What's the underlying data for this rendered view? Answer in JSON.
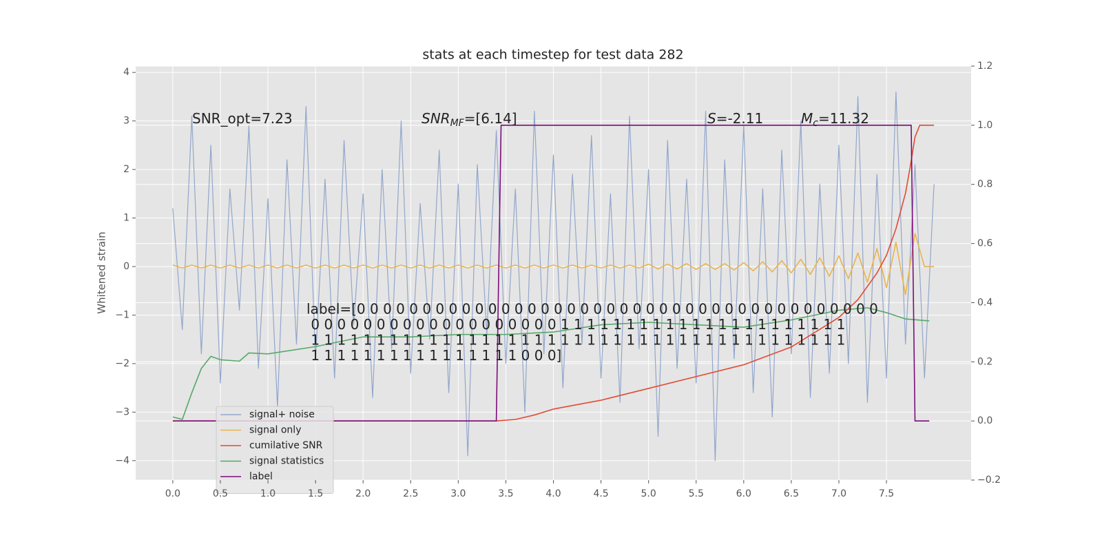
{
  "chart_data": {
    "type": "line",
    "title": "stats at each timestep for test data 282",
    "y_label": "Whitened strain",
    "xlim": [
      -0.39,
      8.39
    ],
    "xticks": [
      {
        "value": 0,
        "label": "0.0"
      },
      0.5,
      {
        "value": 1,
        "label": "1.0"
      },
      1.5,
      {
        "value": 2,
        "label": "2.0"
      },
      2.5,
      {
        "value": 3,
        "label": "3.0"
      },
      3.5,
      {
        "value": 4,
        "label": "4.0"
      },
      4.5,
      {
        "value": 5,
        "label": "5.0"
      },
      5.5,
      {
        "value": 6,
        "label": "6.0"
      },
      6.5,
      {
        "value": 7,
        "label": "7.0"
      },
      7.5
    ],
    "ylim": [
      -4.4,
      4.13
    ],
    "yticks": [
      {
        "value": -4,
        "label": "−4"
      },
      {
        "value": -3,
        "label": "−3"
      },
      {
        "value": -2,
        "label": "−2"
      },
      {
        "value": -1,
        "label": "−1"
      },
      0,
      1,
      2,
      3,
      4
    ],
    "y2lim": [
      -0.2,
      1.2
    ],
    "y2ticks": [
      {
        "value": -0.2,
        "label": "−0.2"
      },
      {
        "value": 0,
        "label": "0.0"
      },
      0.2,
      0.4,
      0.6,
      0.8,
      {
        "value": 1,
        "label": "1.0"
      },
      1.2
    ],
    "grid": true,
    "legend": "lower left",
    "series": [
      {
        "name": "signal+ noise",
        "color": "#92a6cc",
        "x": [
          0,
          0.1,
          0.2,
          0.3,
          0.4,
          0.5,
          0.6,
          0.7,
          0.8,
          0.9,
          1.0,
          1.1,
          1.2,
          1.3,
          1.4,
          1.5,
          1.6,
          1.7,
          1.8,
          1.9,
          2.0,
          2.1,
          2.2,
          2.3,
          2.4,
          2.5,
          2.6,
          2.7,
          2.8,
          2.9,
          3.0,
          3.1,
          3.2,
          3.3,
          3.4,
          3.5,
          3.6,
          3.7,
          3.8,
          3.9,
          4.0,
          4.1,
          4.2,
          4.3,
          4.4,
          4.5,
          4.6,
          4.7,
          4.8,
          4.9,
          5.0,
          5.1,
          5.2,
          5.3,
          5.4,
          5.5,
          5.6,
          5.7,
          5.8,
          5.9,
          6.0,
          6.1,
          6.2,
          6.3,
          6.4,
          6.5,
          6.6,
          6.7,
          6.8,
          6.9,
          7.0,
          7.1,
          7.2,
          7.3,
          7.4,
          7.5,
          7.6,
          7.7,
          7.8,
          7.9,
          8.0
        ],
        "values": [
          1.2,
          -1.3,
          3.1,
          -1.8,
          2.5,
          -2.4,
          1.6,
          -0.9,
          2.9,
          -2.1,
          1.4,
          -2.9,
          2.2,
          -1.6,
          3.3,
          -1.9,
          1.8,
          -2.3,
          2.6,
          -1.2,
          1.5,
          -2.7,
          2.0,
          -1.7,
          3.0,
          -2.2,
          1.3,
          -1.5,
          2.4,
          -2.6,
          1.7,
          -3.9,
          2.1,
          -1.4,
          2.8,
          -2.0,
          1.6,
          -3.0,
          3.2,
          -1.8,
          2.3,
          -2.5,
          1.9,
          -1.6,
          2.7,
          -2.3,
          1.5,
          -2.8,
          3.1,
          -1.7,
          2.0,
          -3.5,
          2.6,
          -2.1,
          1.8,
          -2.4,
          3.2,
          -4.0,
          2.2,
          -1.9,
          2.9,
          -2.6,
          1.6,
          -3.1,
          2.4,
          -1.8,
          3.0,
          -2.7,
          1.7,
          -2.2,
          2.5,
          -2.0,
          3.5,
          -2.8,
          1.9,
          -2.3,
          3.6,
          -1.6,
          2.1,
          -2.3,
          1.7
        ]
      },
      {
        "name": "signal only",
        "color": "#e9b44c",
        "x": [
          0,
          0.1,
          0.2,
          0.3,
          0.4,
          0.5,
          0.6,
          0.7,
          0.8,
          0.9,
          1.0,
          1.1,
          1.2,
          1.3,
          1.4,
          1.5,
          1.6,
          1.7,
          1.8,
          1.9,
          2.0,
          2.1,
          2.2,
          2.3,
          2.4,
          2.5,
          2.6,
          2.7,
          2.8,
          2.9,
          3.0,
          3.1,
          3.2,
          3.3,
          3.4,
          3.5,
          3.6,
          3.7,
          3.8,
          3.9,
          4.0,
          4.1,
          4.2,
          4.3,
          4.4,
          4.5,
          4.6,
          4.7,
          4.8,
          4.9,
          5.0,
          5.1,
          5.2,
          5.3,
          5.4,
          5.5,
          5.6,
          5.7,
          5.8,
          5.9,
          6.0,
          6.1,
          6.2,
          6.3,
          6.4,
          6.5,
          6.6,
          6.7,
          6.8,
          6.9,
          7.0,
          7.1,
          7.2,
          7.3,
          7.4,
          7.5,
          7.6,
          7.7,
          7.8,
          7.9,
          8.0
        ],
        "values": [
          0.03,
          -0.03,
          0.03,
          -0.03,
          0.03,
          -0.03,
          0.03,
          -0.03,
          0.03,
          -0.03,
          0.03,
          -0.03,
          0.03,
          -0.03,
          0.03,
          -0.03,
          0.03,
          -0.03,
          0.03,
          -0.03,
          0.03,
          -0.03,
          0.03,
          -0.03,
          0.03,
          -0.03,
          0.03,
          -0.03,
          0.03,
          -0.03,
          0.03,
          -0.03,
          0.03,
          -0.03,
          0.03,
          -0.03,
          0.03,
          -0.03,
          0.03,
          -0.03,
          0.03,
          -0.03,
          0.03,
          -0.03,
          0.03,
          -0.03,
          0.03,
          -0.03,
          0.03,
          -0.03,
          0.05,
          -0.05,
          0.05,
          -0.05,
          0.06,
          -0.06,
          0.06,
          -0.06,
          0.06,
          -0.07,
          0.08,
          -0.09,
          0.1,
          -0.11,
          0.12,
          -0.13,
          0.15,
          -0.16,
          0.18,
          -0.2,
          0.22,
          -0.25,
          0.28,
          -0.32,
          0.37,
          -0.43,
          0.5,
          -0.58,
          0.68,
          0,
          0
        ]
      },
      {
        "name": "cumilative SNR",
        "color": "#e24a33",
        "axis": "y2",
        "x": [
          0,
          3.4,
          3.6,
          3.8,
          4.0,
          4.5,
          5.0,
          5.5,
          6.0,
          6.5,
          7.0,
          7.2,
          7.4,
          7.5,
          7.6,
          7.7,
          7.75,
          7.8,
          7.85,
          8.0
        ],
        "values": [
          0,
          0,
          0.005,
          0.02,
          0.04,
          0.07,
          0.11,
          0.15,
          0.19,
          0.25,
          0.35,
          0.41,
          0.5,
          0.56,
          0.65,
          0.77,
          0.86,
          0.96,
          1.0,
          1.0
        ]
      },
      {
        "name": "signal statistics",
        "color": "#55a868",
        "x": [
          0,
          0.1,
          0.2,
          0.3,
          0.4,
          0.5,
          0.7,
          0.8,
          1.0,
          1.5,
          2.0,
          2.5,
          3.0,
          3.5,
          4.0,
          4.5,
          5.0,
          5.5,
          6.0,
          6.5,
          7.0,
          7.3,
          7.5,
          7.7,
          7.95
        ],
        "values": [
          -3.1,
          -3.15,
          -2.6,
          -2.1,
          -1.85,
          -1.92,
          -1.95,
          -1.78,
          -1.8,
          -1.65,
          -1.45,
          -1.45,
          -1.4,
          -1.4,
          -1.35,
          -1.2,
          -1.15,
          -1.2,
          -1.25,
          -1.1,
          -0.9,
          -0.85,
          -0.95,
          -1.08,
          -1.12
        ]
      },
      {
        "name": "label",
        "color": "#7b0c7b",
        "axis": "y2",
        "x": [
          0,
          3.4,
          3.45,
          7.76,
          7.8,
          7.95
        ],
        "values": [
          0,
          0,
          1,
          1,
          0,
          0
        ]
      }
    ],
    "annotations": [
      {
        "text": "SNR_opt=7.23"
      },
      {
        "text": "SNR",
        "sub": "MF",
        "tail": "=[6.14]"
      },
      {
        "text": "S",
        "tail": "=-2.11"
      },
      {
        "text": "M",
        "sub": "c",
        "tail": "=11.32"
      }
    ],
    "label_text": [
      "label=[0 0 0 0 0 0 0 0 0 0 0 0 0 0 0 0 0 0 0 0 0 0 0 0 0 0 0 0 0 0 0 0 0 0 0 0 0 0 0 0",
      " 0 0 0 0 0 0 0 0 0 0 0 0 0 0 0 0 0 0 0 1 1 1 1 1 1 1 1 1 1 1 1 1 1 1 1 1 1 1 1 1 1",
      " 1 1 1 1 1 1 1 1 1 1 1 1 1 1 1 1 1 1 1 1 1 1 1 1 1 1 1 1 1 1 1 1 1 1 1 1 1 1 1 1 1",
      " 1 1 1 1 1 1 1 1 1 1 1 1 1 1 1 1 0 0 0]"
    ]
  }
}
